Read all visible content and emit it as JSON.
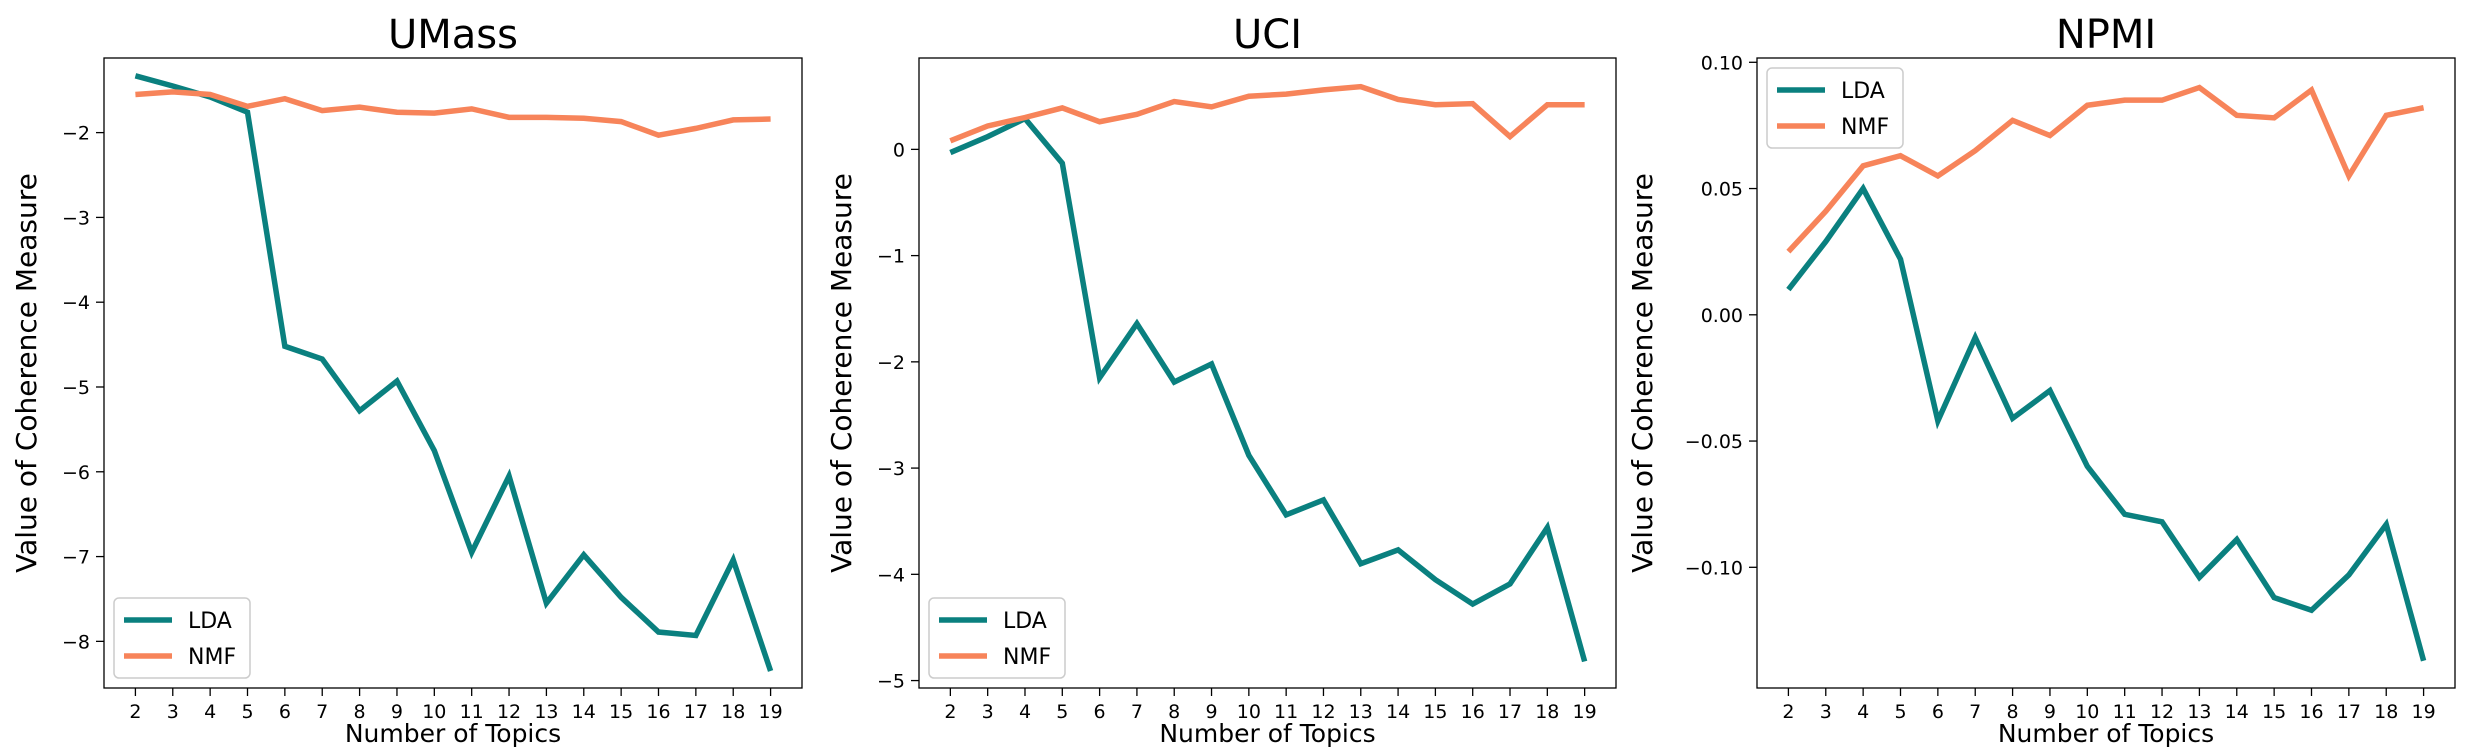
{
  "colors": {
    "lda": "#0a807f",
    "nmf": "#f7845a",
    "axis": "#000000",
    "background": "#ffffff"
  },
  "chart_data": [
    {
      "type": "line",
      "title": "UMass",
      "xlabel": "Number of Topics",
      "ylabel": "Value of Coherence Measure",
      "x": [
        2,
        3,
        4,
        5,
        6,
        7,
        8,
        9,
        10,
        11,
        12,
        13,
        14,
        15,
        16,
        17,
        18,
        19
      ],
      "xticks": [
        "2",
        "3",
        "4",
        "5",
        "6",
        "7",
        "8",
        "9",
        "10",
        "11",
        "12",
        "13",
        "14",
        "15",
        "16",
        "17",
        "18",
        "19"
      ],
      "yticks": [
        -8,
        -7,
        -6,
        -5,
        -4,
        -3,
        -2
      ],
      "ytick_labels": [
        "−8",
        "−7",
        "−6",
        "−5",
        "−4",
        "−3",
        "−2"
      ],
      "ylim": [
        -8.55,
        -1.12
      ],
      "legend": "lower-left",
      "grid": false,
      "series": [
        {
          "name": "LDA",
          "values": [
            -1.33,
            -1.45,
            -1.58,
            -1.76,
            -4.52,
            -4.67,
            -5.28,
            -4.93,
            -5.75,
            -6.95,
            -6.05,
            -7.55,
            -6.98,
            -7.48,
            -7.89,
            -7.93,
            -7.04,
            -8.35
          ]
        },
        {
          "name": "NMF",
          "values": [
            -1.55,
            -1.52,
            -1.55,
            -1.69,
            -1.6,
            -1.74,
            -1.7,
            -1.76,
            -1.77,
            -1.72,
            -1.82,
            -1.82,
            -1.83,
            -1.87,
            -2.03,
            -1.95,
            -1.85,
            -1.84
          ]
        }
      ]
    },
    {
      "type": "line",
      "title": "UCI",
      "xlabel": "Number of Topics",
      "ylabel": "Value of Coherence Measure",
      "x": [
        2,
        3,
        4,
        5,
        6,
        7,
        8,
        9,
        10,
        11,
        12,
        13,
        14,
        15,
        16,
        17,
        18,
        19
      ],
      "xticks": [
        "2",
        "3",
        "4",
        "5",
        "6",
        "7",
        "8",
        "9",
        "10",
        "11",
        "12",
        "13",
        "14",
        "15",
        "16",
        "17",
        "18",
        "19"
      ],
      "yticks": [
        -5,
        -4,
        -3,
        -2,
        -1,
        0
      ],
      "ytick_labels": [
        "−5",
        "−4",
        "−3",
        "−2",
        "−1",
        "0"
      ],
      "ylim": [
        -5.07,
        0.86
      ],
      "legend": "lower-left",
      "grid": false,
      "series": [
        {
          "name": "LDA",
          "values": [
            -0.03,
            0.12,
            0.29,
            -0.13,
            -2.15,
            -1.64,
            -2.19,
            -2.02,
            -2.88,
            -3.44,
            -3.3,
            -3.9,
            -3.77,
            -4.05,
            -4.28,
            -4.09,
            -3.56,
            -4.82
          ]
        },
        {
          "name": "NMF",
          "values": [
            0.08,
            0.22,
            0.3,
            0.39,
            0.26,
            0.33,
            0.45,
            0.4,
            0.5,
            0.52,
            0.56,
            0.59,
            0.47,
            0.42,
            0.43,
            0.12,
            0.42,
            0.42
          ]
        }
      ]
    },
    {
      "type": "line",
      "title": "NPMI",
      "xlabel": "Number of Topics",
      "ylabel": "Value of Coherence Measure",
      "x": [
        2,
        3,
        4,
        5,
        6,
        7,
        8,
        9,
        10,
        11,
        12,
        13,
        14,
        15,
        16,
        17,
        18,
        19
      ],
      "xticks": [
        "2",
        "3",
        "4",
        "5",
        "6",
        "7",
        "8",
        "9",
        "10",
        "11",
        "12",
        "13",
        "14",
        "15",
        "16",
        "17",
        "18",
        "19"
      ],
      "yticks": [
        -0.1,
        -0.05,
        0.0,
        0.05,
        0.1
      ],
      "ytick_labels": [
        "−0.10",
        "−0.05",
        "0.00",
        "0.05",
        "0.10"
      ],
      "ylim": [
        -0.1478,
        0.1017
      ],
      "legend": "upper-left",
      "grid": false,
      "series": [
        {
          "name": "LDA",
          "values": [
            0.01,
            0.029,
            0.05,
            0.022,
            -0.042,
            -0.009,
            -0.041,
            -0.03,
            -0.06,
            -0.079,
            -0.082,
            -0.104,
            -0.089,
            -0.112,
            -0.117,
            -0.103,
            -0.083,
            -0.137
          ]
        },
        {
          "name": "NMF",
          "values": [
            0.025,
            0.041,
            0.059,
            0.063,
            0.055,
            0.065,
            0.077,
            0.071,
            0.083,
            0.085,
            0.085,
            0.09,
            0.079,
            0.078,
            0.089,
            0.055,
            0.079,
            0.082
          ]
        }
      ]
    }
  ]
}
